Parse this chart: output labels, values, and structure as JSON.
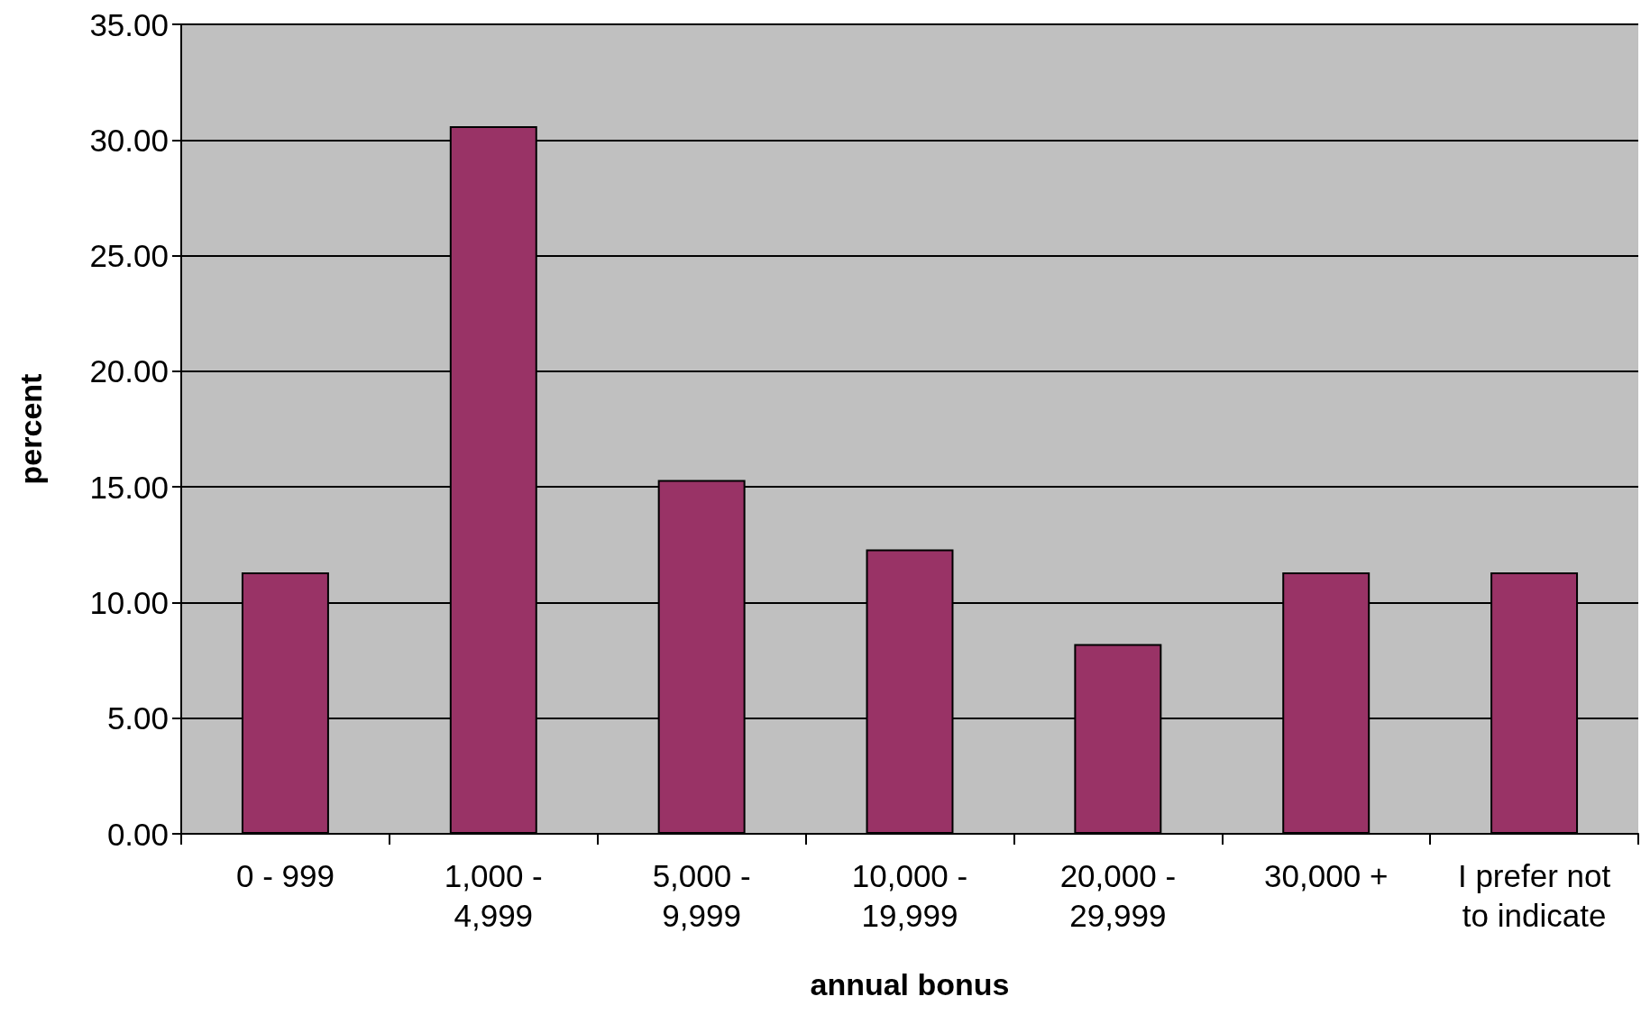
{
  "chart_data": {
    "type": "bar",
    "xlabel": "annual bonus",
    "ylabel": "percent",
    "categories": [
      "0 - 999",
      "1,000 - 4,999",
      "5,000 - 9,999",
      "10,000 - 19,999",
      "20,000 - 29,999",
      "30,000 +",
      "I prefer not to indicate"
    ],
    "values": [
      11.3,
      30.6,
      15.3,
      12.3,
      8.2,
      11.3,
      11.3
    ],
    "color": "#993366",
    "ylim": [
      0,
      35
    ],
    "yticks": [
      {
        "value": 0,
        "label": "0.00"
      },
      {
        "value": 5,
        "label": "5.00"
      },
      {
        "value": 10,
        "label": "10.00"
      },
      {
        "value": 15,
        "label": "15.00"
      },
      {
        "value": 20,
        "label": "20.00"
      },
      {
        "value": 25,
        "label": "25.00"
      },
      {
        "value": 30,
        "label": "30.00"
      },
      {
        "value": 35,
        "label": "35.00"
      }
    ],
    "grid": "y"
  }
}
